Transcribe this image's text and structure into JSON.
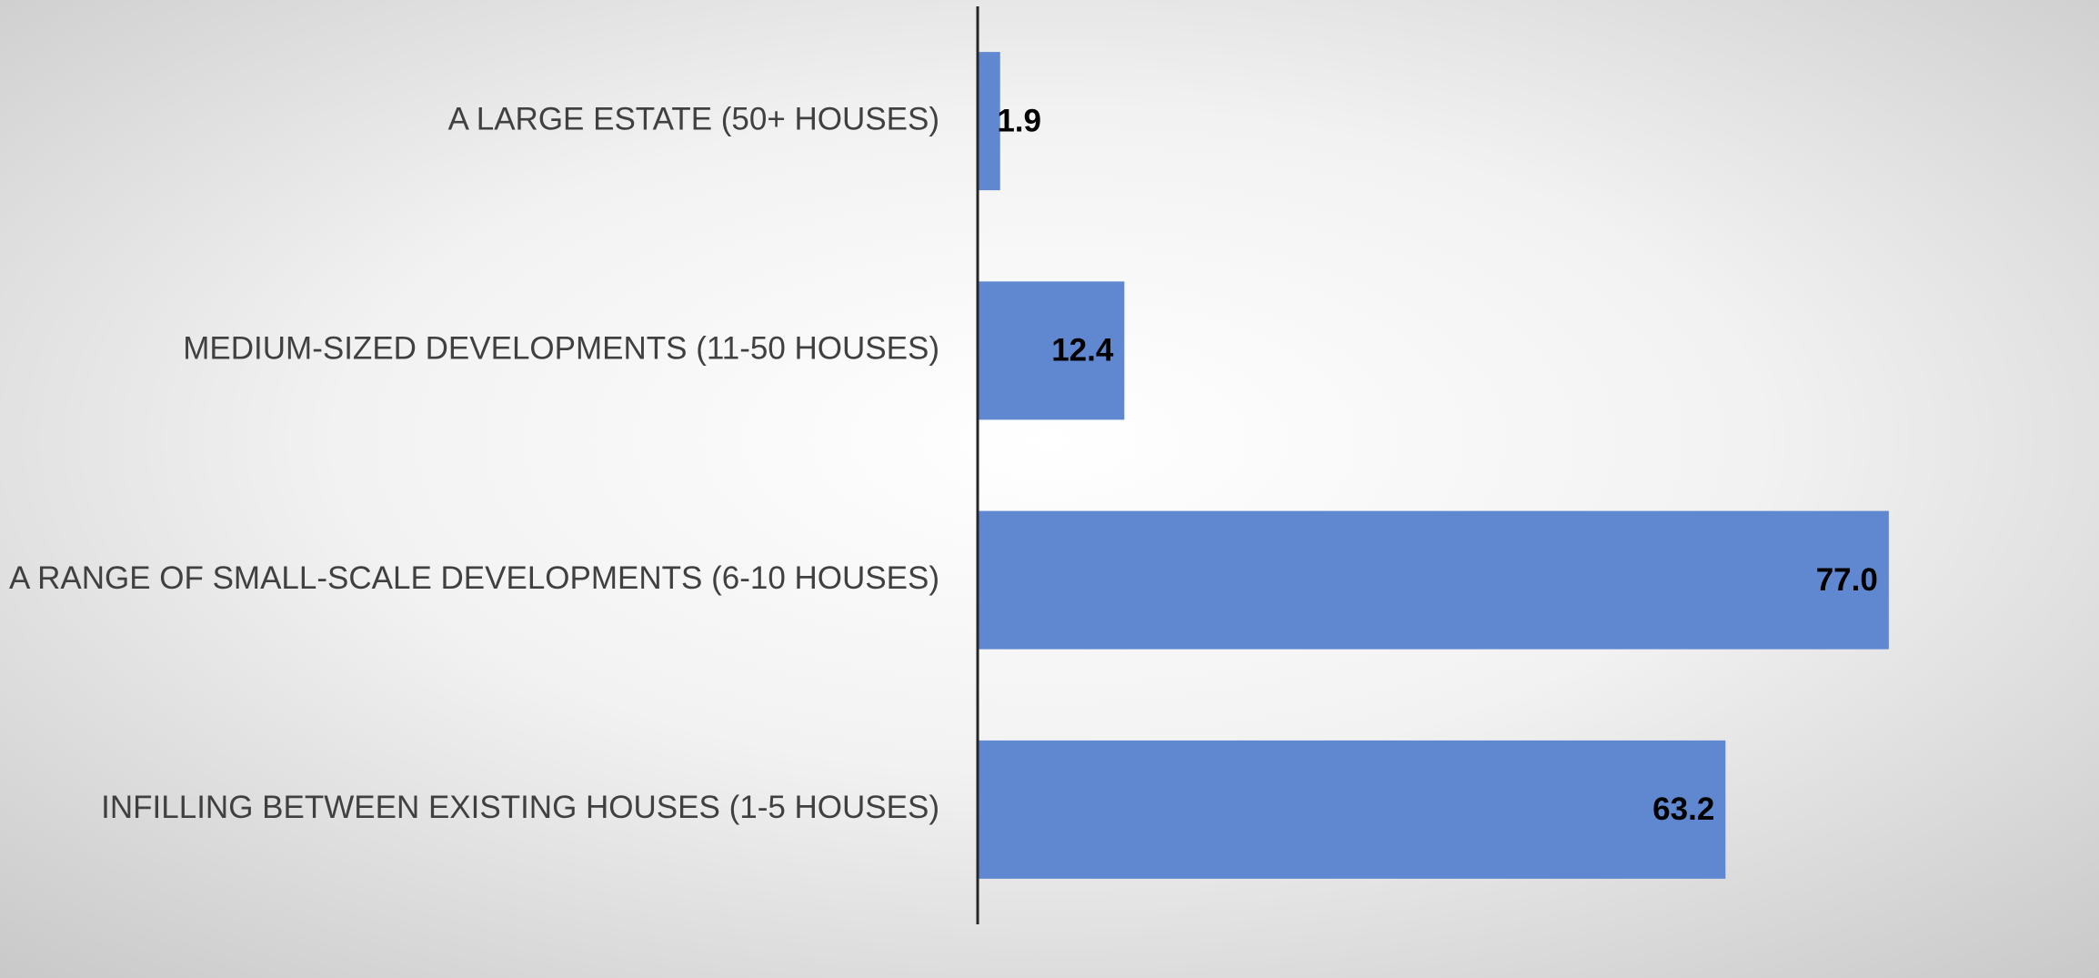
{
  "chart_data": {
    "type": "barh",
    "categories": [
      "A LARGE ESTATE (50+ HOUSES)",
      "MEDIUM-SIZED DEVELOPMENTS (11-50 HOUSES)",
      "A RANGE OF SMALL-SCALE DEVELOPMENTS (6-10 HOUSES)",
      "INFILLING BETWEEN EXISTING HOUSES (1-5 HOUSES)"
    ],
    "values": [
      1.9,
      12.4,
      77.0,
      63.2
    ],
    "value_labels": [
      "1.9",
      "12.4",
      "77.0",
      "63.2"
    ],
    "color": "#5f88d0",
    "xlim": [
      0,
      90
    ],
    "xticks": [
      {
        "value": 0,
        "label": "0.0"
      },
      {
        "value": 10,
        "label": "10.0"
      },
      {
        "value": 20,
        "label": "20.0"
      },
      {
        "value": 30,
        "label": "30.0"
      },
      {
        "value": 40,
        "label": "40.0"
      },
      {
        "value": 50,
        "label": "50.0"
      },
      {
        "value": 60,
        "label": "60.0"
      },
      {
        "value": 70,
        "label": "70.0"
      },
      {
        "value": 80,
        "label": "80.0"
      },
      {
        "value": 90,
        "label": "90.0"
      }
    ],
    "grid": true
  }
}
